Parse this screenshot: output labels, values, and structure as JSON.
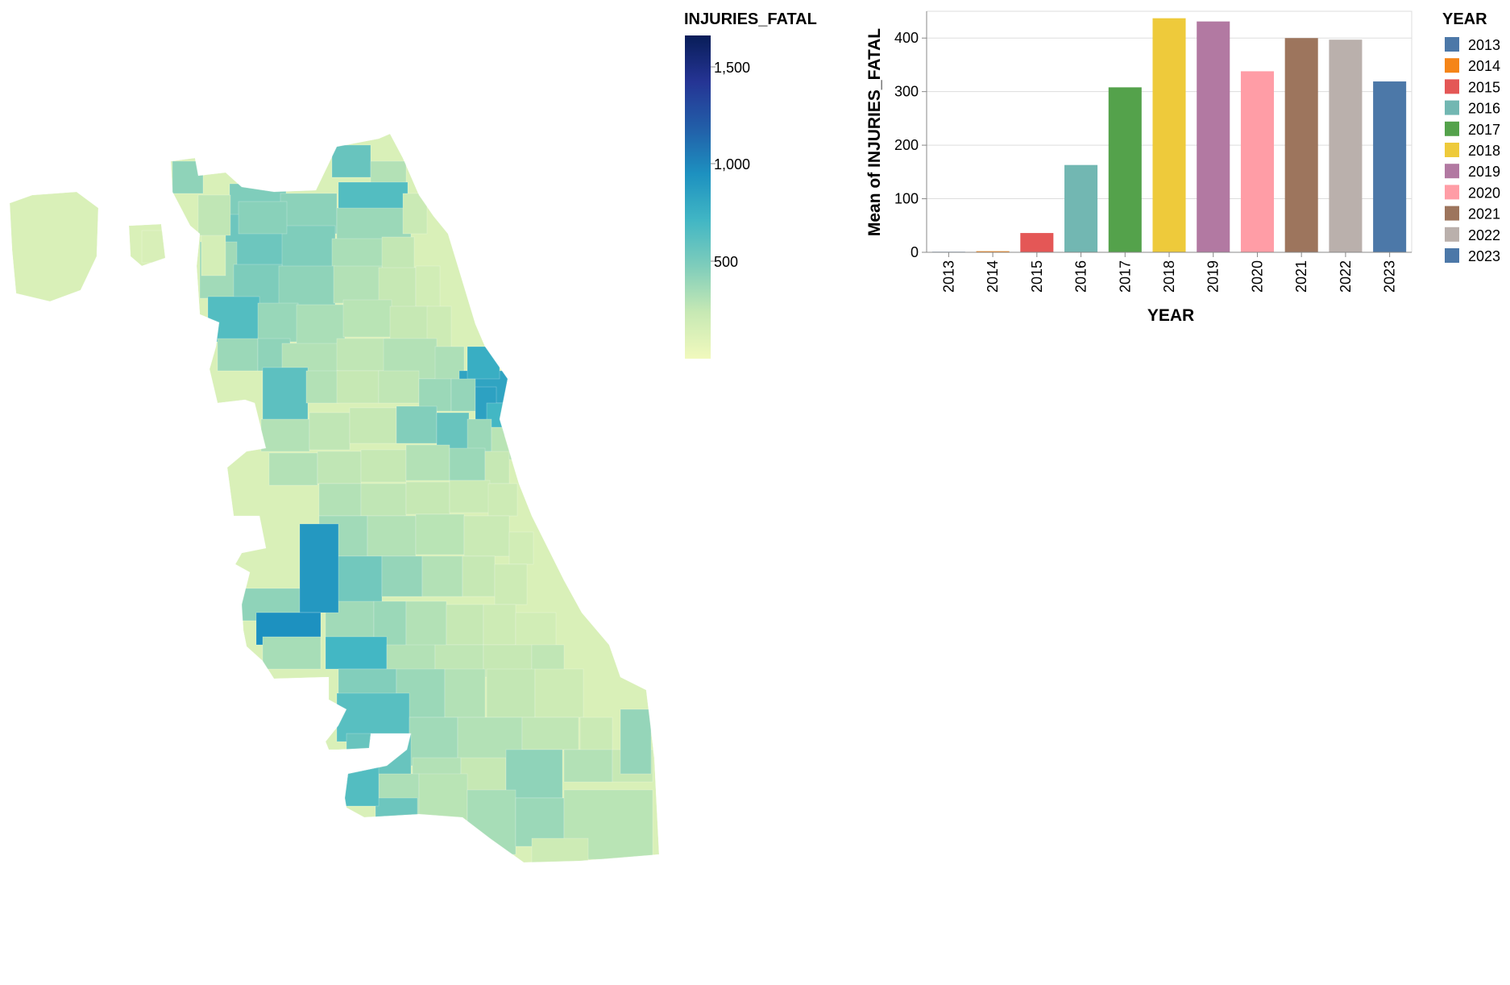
{
  "map": {
    "legend_title": "INJURIES_FATAL",
    "legend_ticks": [
      "1,500",
      "1,000",
      "500"
    ],
    "color_scale": {
      "domain": [
        0,
        1650
      ],
      "stops": [
        "#f1f9bd",
        "#c7e9b4",
        "#7fcdbb",
        "#41b6c4",
        "#1d91c0",
        "#225ea8",
        "#253494",
        "#081d58"
      ]
    }
  },
  "chart_data": {
    "type": "bar",
    "x_field": "YEAR",
    "xlabel": "YEAR",
    "ylabel": "Mean of INJURIES_FATAL",
    "ylim": [
      0,
      450
    ],
    "yticks": [
      0,
      100,
      200,
      300,
      400
    ],
    "grid": true,
    "categories": [
      "2013",
      "2014",
      "2015",
      "2016",
      "2017",
      "2018",
      "2019",
      "2020",
      "2021",
      "2022",
      "2023"
    ],
    "values": [
      1,
      2,
      36,
      163,
      308,
      437,
      431,
      338,
      400,
      397,
      319
    ],
    "colors": [
      "#4c78a8",
      "#f58518",
      "#e45756",
      "#72b7b2",
      "#54a24b",
      "#eeca3b",
      "#b279a2",
      "#ff9da6",
      "#9d755d",
      "#bab0ac",
      "#4c78a8"
    ],
    "legend": {
      "title": "YEAR",
      "placement": "right",
      "entries": [
        "2013",
        "2014",
        "2015",
        "2016",
        "2017",
        "2018",
        "2019",
        "2020",
        "2021",
        "2022",
        "2023"
      ]
    }
  }
}
